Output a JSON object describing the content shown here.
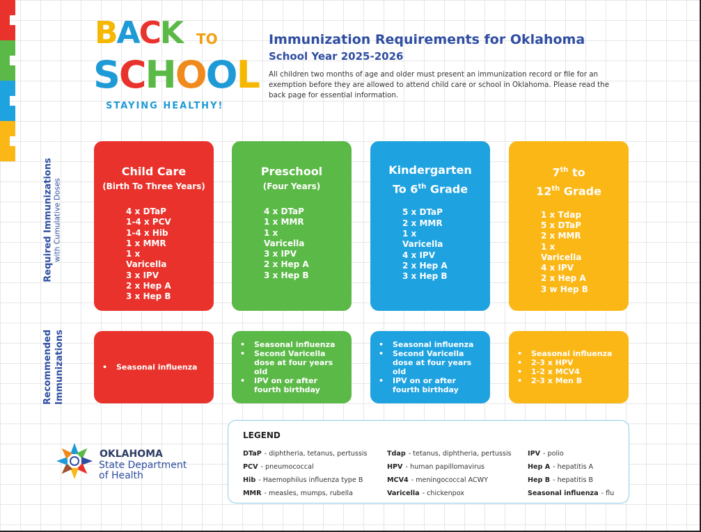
{
  "logo": {
    "line1": "BACK",
    "to": "TO",
    "line2": "SCHOOL",
    "tagline": "STAYING HEALTHY!"
  },
  "header": {
    "title": "Immunization Requirements for Oklahoma",
    "subtitle": "School Year 2025-2026",
    "intro": "All children two months of age and older must present an immunization record or file for an exemption before they are allowed to attend child care or school in Oklahoma. Please read the back page for essential information."
  },
  "row_labels": {
    "required": "Required Immunizations",
    "required_sub": "with Cumulative Doses",
    "recommended": "Recommended Immunizations"
  },
  "columns": [
    {
      "color": "#e8322b",
      "title_lines": [
        {
          "text": "Child Care"
        }
      ],
      "subtitle": "(Birth To Three Years)",
      "required": [
        "4 x DTaP",
        "1-4 x PCV",
        "1-4 x Hib",
        "1 x MMR",
        "1 x Varicella",
        "3 x IPV",
        "2 x Hep A",
        "3 x Hep B"
      ],
      "recommended": [
        "Seasonal influenza"
      ]
    },
    {
      "color": "#5bb947",
      "title_lines": [
        {
          "text": "Preschool"
        }
      ],
      "subtitle": "(Four Years)",
      "required": [
        "4 x DTaP",
        "1 x MMR",
        "1 x Varicella",
        "3 x IPV",
        "2 x Hep A",
        "3 x Hep B"
      ],
      "recommended": [
        "Seasonal influenza",
        "Second Varicella dose at four years old",
        "IPV on or after fourth birthday"
      ]
    },
    {
      "color": "#1ea2e0",
      "title_lines": [
        {
          "text": "Kindergarten"
        },
        {
          "text": "To 6",
          "sup": "th",
          "after": " Grade"
        }
      ],
      "required": [
        "5 x DTaP",
        "2 x MMR",
        "1 x Varicella",
        "4 x IPV",
        "2 x Hep A",
        "3 x Hep B"
      ],
      "recommended": [
        "Seasonal influenza",
        "Second Varicella dose at four years old",
        "IPV on or after fourth birthday"
      ]
    },
    {
      "color": "#fbb716",
      "title_lines": [
        {
          "text": "7",
          "sup": "th",
          "after": " to"
        },
        {
          "text": "12",
          "sup": "th",
          "after": " Grade"
        }
      ],
      "required": [
        "1 x Tdap",
        "5 x DTaP",
        "2 x MMR",
        "1 x Varicella",
        "4 x IPV",
        "2 x Hep A",
        "3 w Hep B"
      ],
      "recommended": [
        "Seasonal influenza",
        "2-3 x HPV",
        "1-2 x MCV4",
        "2-3 x Men B"
      ]
    }
  ],
  "legend": {
    "title": "LEGEND",
    "columns": [
      [
        {
          "abbr": "DTaP",
          "def": "- diphtheria, tetanus, pertussis"
        },
        {
          "abbr": "PCV",
          "def": "- pneumococcal"
        },
        {
          "abbr": "Hib",
          "def": "- Haemophilus influenza type B"
        },
        {
          "abbr": "MMR",
          "def": "- measles, mumps, rubella"
        }
      ],
      [
        {
          "abbr": "Tdap",
          "def": "- tetanus, diphtheria, pertussis"
        },
        {
          "abbr": "HPV",
          "def": "- human papillomavirus"
        },
        {
          "abbr": "MCV4",
          "def": "- meningococcal ACWY"
        },
        {
          "abbr": "Varicella",
          "def": "- chickenpox"
        }
      ],
      [
        {
          "abbr": "IPV",
          "def": "- polio"
        },
        {
          "abbr": "Hep A",
          "def": "- hepatitis A"
        },
        {
          "abbr": "Hep B",
          "def": "- hepatitis B"
        },
        {
          "abbr": "Seasonal influenza",
          "def": "- flu"
        }
      ]
    ]
  },
  "footer": {
    "org_line1": "OKLAHOMA",
    "org_line2": "State Department",
    "org_line3": "of Health"
  }
}
